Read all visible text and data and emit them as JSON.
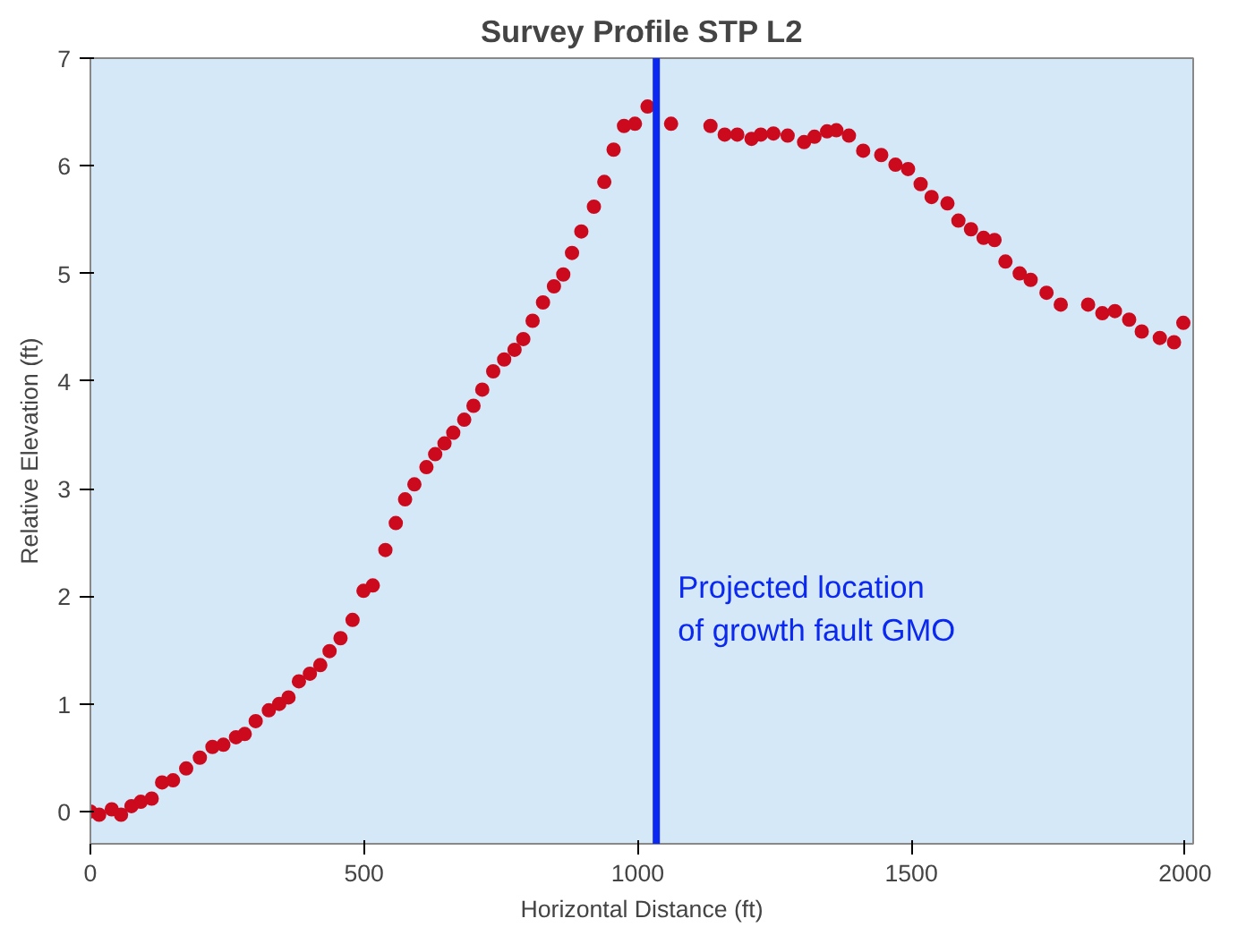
{
  "chart_data": {
    "type": "scatter",
    "title": "Survey Profile STP L2",
    "xlabel": "Horizontal Distance (ft)",
    "ylabel": "Relative Elevation (ft)",
    "x": [
      0,
      16,
      39,
      56,
      75,
      92,
      112,
      131,
      151,
      175,
      200,
      223,
      243,
      266,
      282,
      302,
      326,
      345,
      362,
      381,
      401,
      420,
      437,
      457,
      479,
      499,
      516,
      539,
      558,
      575,
      592,
      614,
      630,
      647,
      663,
      683,
      700,
      716,
      736,
      756,
      775,
      791,
      808,
      827,
      847,
      864,
      880,
      897,
      920,
      939,
      956,
      975,
      995,
      1018,
      1061,
      1133,
      1159,
      1182,
      1208,
      1225,
      1248,
      1274,
      1304,
      1323,
      1346,
      1363,
      1386,
      1412,
      1445,
      1471,
      1494,
      1517,
      1537,
      1566,
      1586,
      1609,
      1632,
      1652,
      1672,
      1698,
      1718,
      1747,
      1773,
      1823,
      1849,
      1872,
      1898,
      1921,
      1954,
      1980,
      1997
    ],
    "series": [
      {
        "color": "#cc0a1e",
        "values": [
          0,
          -0.03,
          0.02,
          -0.03,
          0.05,
          0.09,
          0.12,
          0.27,
          0.29,
          0.4,
          0.5,
          0.6,
          0.62,
          0.69,
          0.72,
          0.84,
          0.94,
          1.0,
          1.06,
          1.21,
          1.28,
          1.36,
          1.49,
          1.61,
          1.78,
          2.05,
          2.1,
          2.43,
          2.68,
          2.9,
          3.04,
          3.2,
          3.32,
          3.42,
          3.52,
          3.64,
          3.77,
          3.92,
          4.09,
          4.2,
          4.29,
          4.39,
          4.56,
          4.73,
          4.88,
          4.99,
          5.19,
          5.39,
          5.62,
          5.85,
          6.15,
          6.37,
          6.39,
          6.55,
          6.39,
          6.37,
          6.29,
          6.29,
          6.25,
          6.29,
          6.3,
          6.28,
          6.22,
          6.27,
          6.32,
          6.33,
          6.28,
          6.14,
          6.1,
          6.01,
          5.97,
          5.83,
          5.71,
          5.65,
          5.49,
          5.41,
          5.33,
          5.31,
          5.11,
          5.0,
          4.94,
          4.82,
          4.71,
          4.71,
          4.63,
          4.65,
          4.57,
          4.46,
          4.4,
          4.36,
          4.54
        ]
      }
    ],
    "xlim": [
      0,
      2015
    ],
    "ylim": [
      -0.3,
      7
    ],
    "xticks": [
      0,
      500,
      1000,
      1500,
      2000
    ],
    "yticks": [
      0,
      1,
      2,
      3,
      4,
      5,
      6,
      7
    ],
    "grid": false,
    "marker": "circle",
    "ref_lines": [
      {
        "axis": "x",
        "value": 1034,
        "label": "Projected location\nof growth fault GMO",
        "color": "#0a28f0"
      }
    ]
  }
}
